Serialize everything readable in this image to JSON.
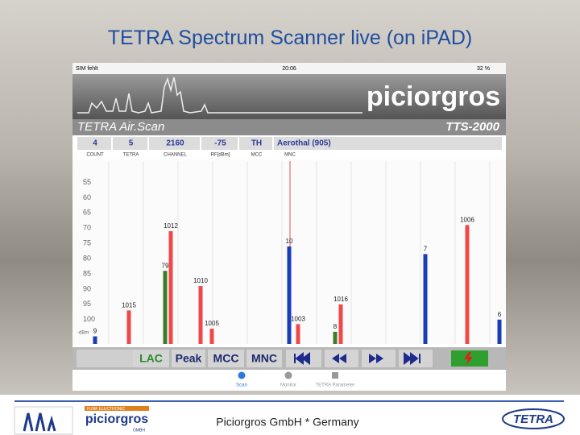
{
  "slide": {
    "title": "TETRA Spectrum Scanner live (on iPAD)",
    "footer": "Piciorgros GmbH * Germany",
    "logos": {
      "funk": "FUNK ELECTRONIC",
      "piciorgros": "piciorgros",
      "gmbh": "GMBH",
      "tetra": "TETRA"
    }
  },
  "app": {
    "status": {
      "carrier": "SIM fehlt",
      "time": "20:06",
      "battery": "32 %"
    },
    "brand": "piciorgros",
    "product": "TETRA Air.Scan",
    "model": "TTS-2000",
    "info": [
      {
        "value": "4",
        "label": "COUNT"
      },
      {
        "value": "5",
        "label": "TETRA"
      },
      {
        "value": "2160",
        "label": "CHANNEL"
      },
      {
        "value": "-75",
        "label": "RF[dBm]"
      },
      {
        "value": "TH",
        "label": "MCC"
      },
      {
        "value": "Aerothal (905)",
        "label": "MNC"
      }
    ],
    "chart": {
      "unit": "-dBm",
      "ylim": [
        48,
        108
      ],
      "yticks": [
        55,
        60,
        65,
        70,
        75,
        80,
        85,
        90,
        95,
        100
      ],
      "bars": [
        {
          "label": "9",
          "level": 105.5,
          "color": "#1a3cb8"
        },
        {
          "label": "1015",
          "level": 97,
          "color": "#f04848"
        },
        {
          "label": "79",
          "level": 84,
          "color": "#3a7d2a"
        },
        {
          "label": "1012",
          "level": 71,
          "color": "#f04848"
        },
        {
          "label": "1010",
          "level": 89,
          "color": "#f04848"
        },
        {
          "label": "1005",
          "level": 103,
          "color": "#f04848"
        },
        {
          "label": "10",
          "level": 76,
          "color": "#1a3cb8"
        },
        {
          "label": "1003",
          "level": 101.5,
          "color": "#f04848"
        },
        {
          "label": "8",
          "level": 104,
          "color": "#3a7d2a"
        },
        {
          "label": "1016",
          "level": 95,
          "color": "#f04848"
        },
        {
          "label": "7",
          "level": 78.5,
          "color": "#1a3cb8"
        },
        {
          "label": "1006",
          "level": 69,
          "color": "#f04848"
        },
        {
          "label": "6",
          "level": 100,
          "color": "#1a3cb8"
        }
      ]
    },
    "buttons": [
      "LAC",
      "Peak",
      "MCC",
      "MNC"
    ],
    "tabs": [
      "Scan",
      "Monitor",
      "TETRA Parameter"
    ]
  }
}
